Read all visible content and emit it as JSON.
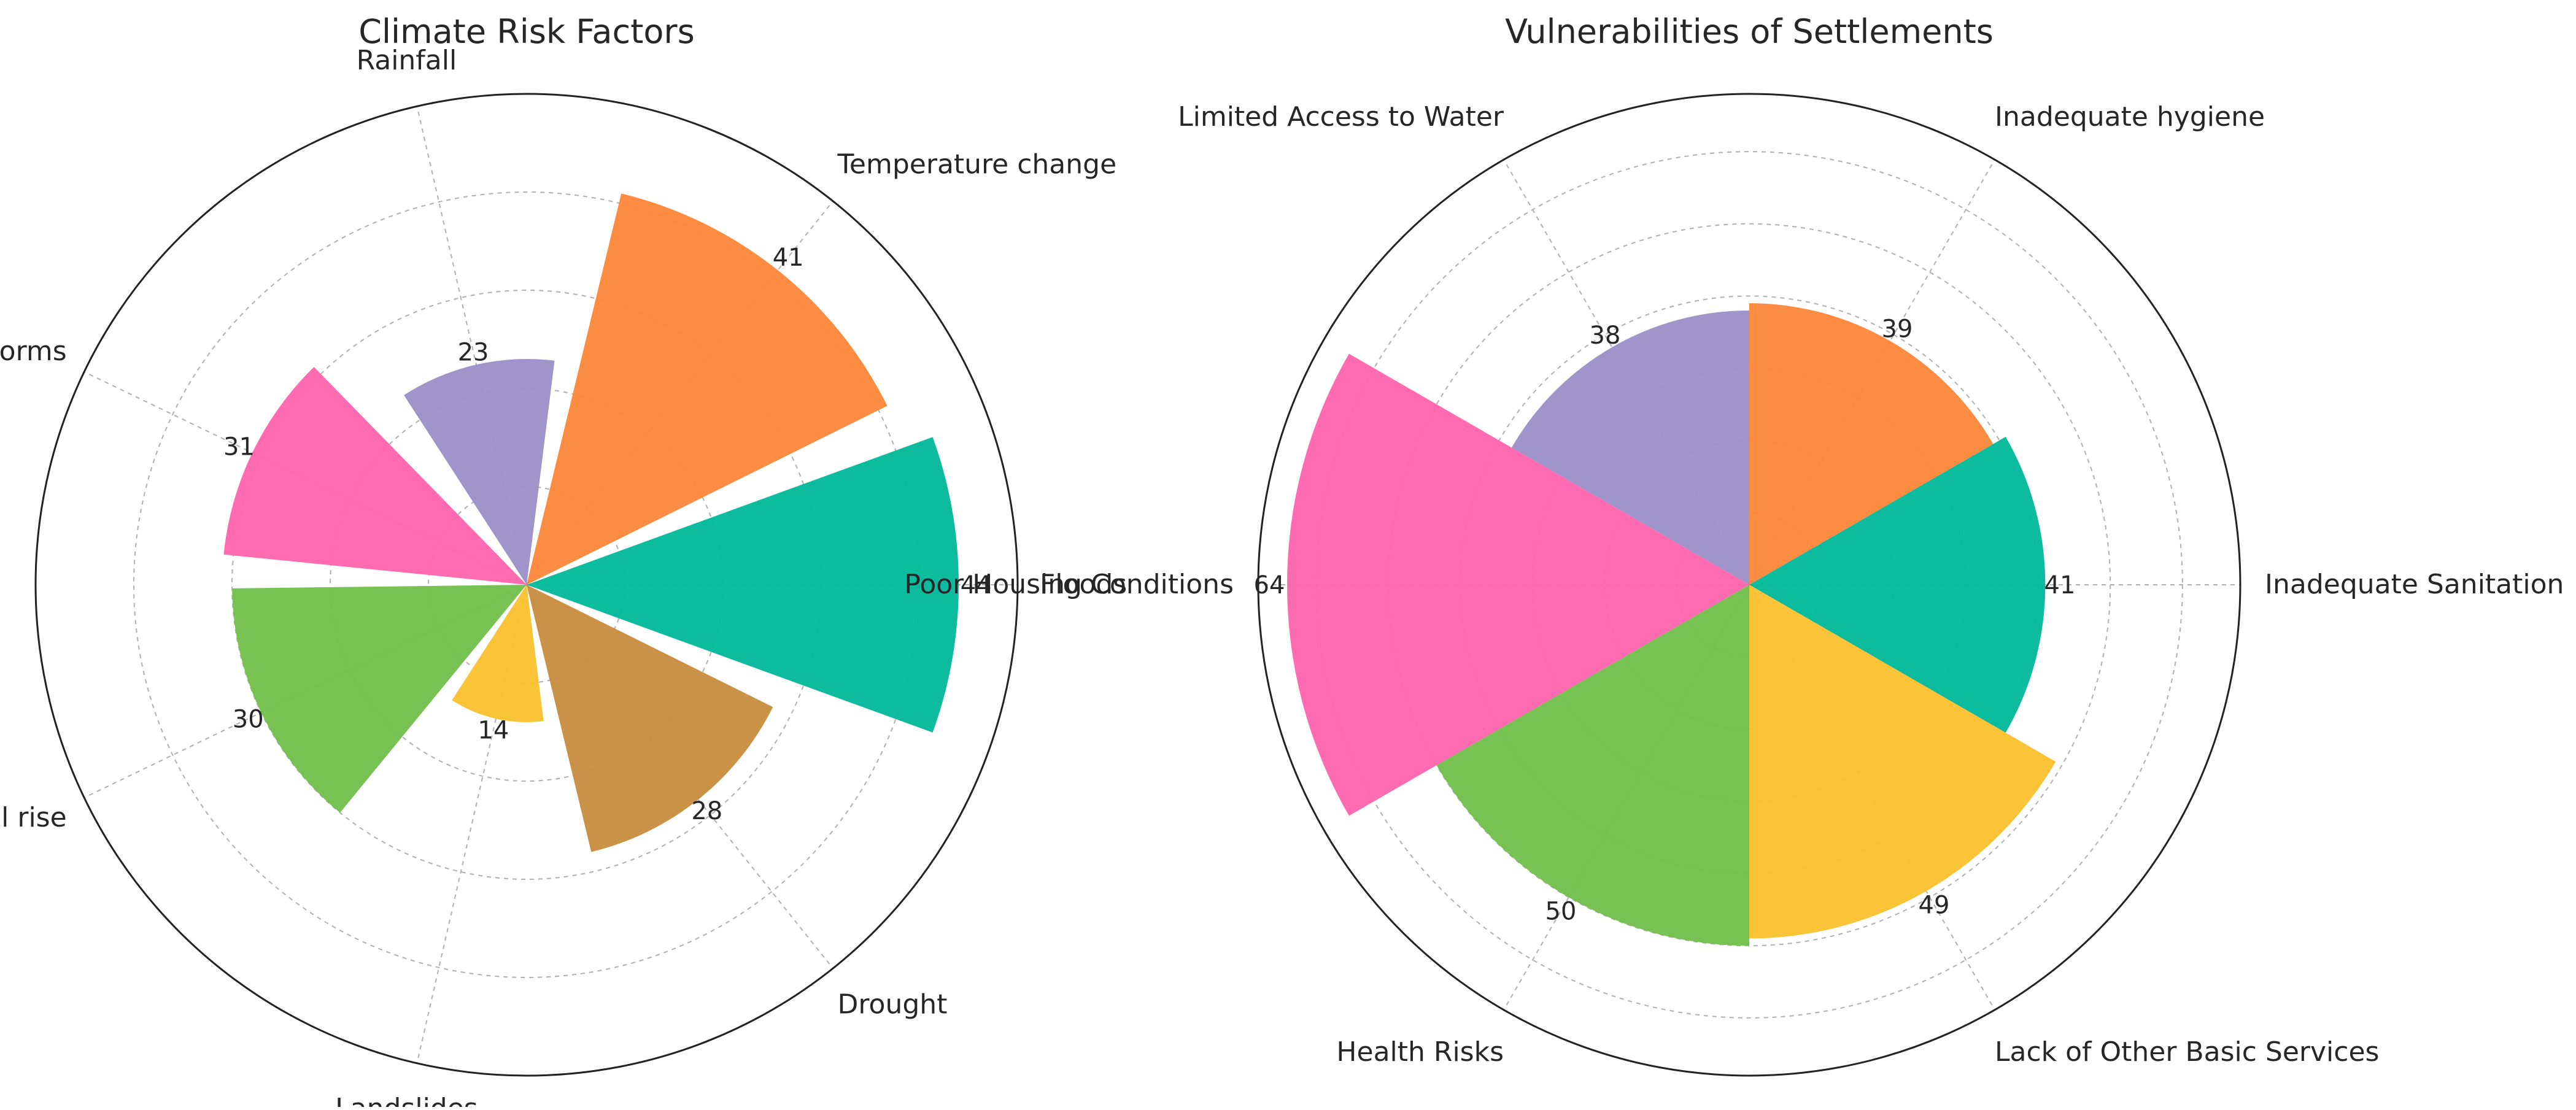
{
  "chart_data": [
    {
      "type": "polar-bar",
      "title": "Climate Risk Factors",
      "categories": [
        "Floods",
        "Temperature change",
        "Rainfall",
        "Storms",
        "Sea level rise",
        "Landslides",
        "Drought"
      ],
      "values": [
        44,
        41,
        23,
        31,
        30,
        14,
        28
      ],
      "angles_deg": [
        0,
        51.4,
        102.9,
        154.3,
        205.7,
        257.1,
        308.6
      ],
      "widths_deg": [
        40,
        50,
        40,
        40,
        50,
        40,
        50
      ],
      "colors": [
        "#00b89a",
        "#fb8638",
        "#9a8fc8",
        "#ff63ad",
        "#70bf4a",
        "#fbc02d",
        "#c68c3c"
      ],
      "rlim": [
        0,
        50
      ],
      "grid": true
    },
    {
      "type": "polar-bar",
      "title": "Vulnerabilities of Settlements",
      "categories": [
        "Inadequate Sanitation",
        "Inadequate hygiene",
        "Limited Access to Water",
        "Poor Housing Conditions",
        "Health Risks",
        "Lack of Other Basic Services"
      ],
      "values": [
        41,
        39,
        38,
        64,
        50,
        49
      ],
      "angles_deg": [
        0,
        60,
        120,
        180,
        240,
        300
      ],
      "widths_deg": [
        60,
        60,
        60,
        60,
        60,
        60
      ],
      "colors": [
        "#00b89a",
        "#fb8638",
        "#9a8fc8",
        "#ff63ad",
        "#70bf4a",
        "#fbc02d"
      ],
      "rlim": [
        0,
        68
      ],
      "grid": true
    }
  ]
}
